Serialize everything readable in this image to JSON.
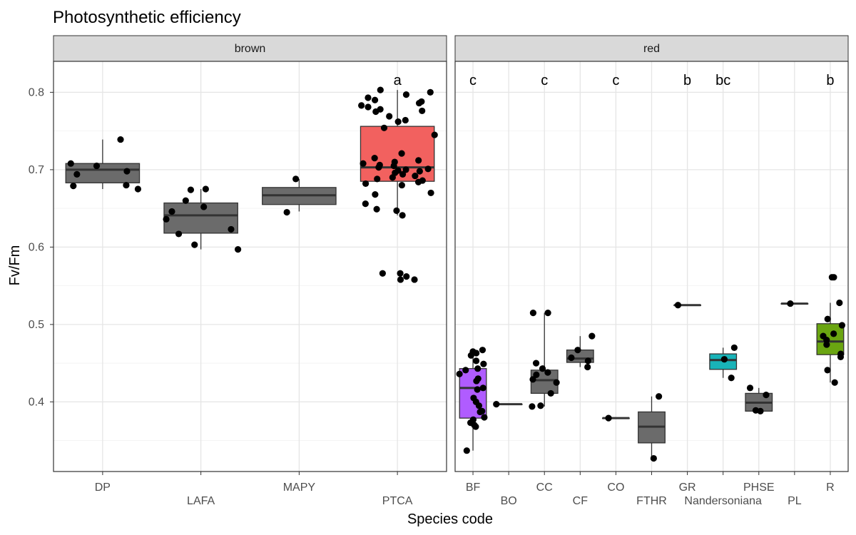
{
  "chart_data": {
    "type": "box",
    "title": "Photosynthetic efficiency",
    "xlabel": "Species code",
    "ylabel": "Fv/Fm",
    "ylim": [
      0.31,
      0.84
    ],
    "yticks": [
      0.4,
      0.5,
      0.6,
      0.7,
      0.8
    ],
    "ytick_labels": [
      "0.4",
      "0.5",
      "0.6",
      "0.7",
      "0.8"
    ],
    "grid": true,
    "colors": {
      "default": "#6b6b6b",
      "PTCA": "#f2615f",
      "BF": "#b05cff",
      "Nandersoniana": "#19b3b8",
      "R": "#6aa511"
    },
    "panels": [
      {
        "strip": "brown",
        "categories": [
          "DP",
          "LAFA",
          "MAPY",
          "PTCA"
        ],
        "groups": [
          {
            "code": "DP",
            "q1": 0.683,
            "median": 0.7,
            "q3": 0.708,
            "wlo": 0.675,
            "whi": 0.739,
            "letter": "",
            "points": [
              0.739,
              0.708,
              0.705,
              0.698,
              0.694,
              0.68,
              0.679,
              0.675
            ]
          },
          {
            "code": "LAFA",
            "q1": 0.618,
            "median": 0.641,
            "q3": 0.657,
            "wlo": 0.597,
            "whi": 0.675,
            "letter": "",
            "points": [
              0.675,
              0.674,
              0.66,
              0.652,
              0.646,
              0.636,
              0.623,
              0.617,
              0.603,
              0.597
            ]
          },
          {
            "code": "MAPY",
            "q1": 0.655,
            "median": 0.667,
            "q3": 0.677,
            "wlo": 0.646,
            "whi": 0.688,
            "letter": "",
            "points": [
              0.688,
              0.645
            ]
          },
          {
            "code": "PTCA",
            "q1": 0.685,
            "median": 0.703,
            "q3": 0.756,
            "wlo": 0.641,
            "whi": 0.803,
            "letter": "a",
            "points": [
              0.803,
              0.8,
              0.797,
              0.793,
              0.79,
              0.788,
              0.786,
              0.783,
              0.781,
              0.778,
              0.776,
              0.775,
              0.769,
              0.764,
              0.762,
              0.754,
              0.745,
              0.721,
              0.715,
              0.712,
              0.71,
              0.708,
              0.706,
              0.705,
              0.703,
              0.701,
              0.7,
              0.699,
              0.698,
              0.696,
              0.694,
              0.692,
              0.69,
              0.688,
              0.686,
              0.684,
              0.682,
              0.68,
              0.67,
              0.668,
              0.656,
              0.649,
              0.647,
              0.641,
              0.566,
              0.566,
              0.562,
              0.558,
              0.558
            ]
          }
        ]
      },
      {
        "strip": "red",
        "categories": [
          "BF",
          "BO",
          "CC",
          "CF",
          "CO",
          "FTHR",
          "GR",
          "Nandersoniana",
          "PHSE",
          "PL",
          "R"
        ],
        "groups": [
          {
            "code": "BF",
            "q1": 0.379,
            "median": 0.418,
            "q3": 0.443,
            "wlo": 0.337,
            "whi": 0.467,
            "letter": "c",
            "points": [
              0.467,
              0.465,
              0.463,
              0.46,
              0.453,
              0.449,
              0.443,
              0.441,
              0.436,
              0.43,
              0.427,
              0.418,
              0.416,
              0.405,
              0.4,
              0.395,
              0.388,
              0.387,
              0.38,
              0.377,
              0.373,
              0.37,
              0.368,
              0.337
            ]
          },
          {
            "code": "BO",
            "q1": 0.397,
            "median": 0.397,
            "q3": 0.397,
            "wlo": 0.397,
            "whi": 0.397,
            "letter": "",
            "points": [
              0.397
            ]
          },
          {
            "code": "CC",
            "q1": 0.411,
            "median": 0.428,
            "q3": 0.441,
            "wlo": 0.394,
            "whi": 0.515,
            "letter": "c",
            "points": [
              0.515,
              0.515,
              0.45,
              0.443,
              0.438,
              0.435,
              0.429,
              0.425,
              0.411,
              0.395,
              0.394
            ]
          },
          {
            "code": "CF",
            "q1": 0.451,
            "median": 0.456,
            "q3": 0.467,
            "wlo": 0.445,
            "whi": 0.485,
            "letter": "",
            "points": [
              0.485,
              0.467,
              0.457,
              0.453,
              0.445
            ]
          },
          {
            "code": "CO",
            "q1": 0.379,
            "median": 0.379,
            "q3": 0.379,
            "wlo": 0.379,
            "whi": 0.379,
            "letter": "c",
            "points": [
              0.379
            ]
          },
          {
            "code": "FTHR",
            "q1": 0.347,
            "median": 0.368,
            "q3": 0.387,
            "wlo": 0.327,
            "whi": 0.407,
            "letter": "",
            "points": [
              0.407,
              0.327
            ]
          },
          {
            "code": "GR",
            "q1": 0.525,
            "median": 0.525,
            "q3": 0.525,
            "wlo": 0.525,
            "whi": 0.525,
            "letter": "b",
            "points": [
              0.525
            ]
          },
          {
            "code": "Nandersoniana",
            "q1": 0.442,
            "median": 0.454,
            "q3": 0.462,
            "wlo": 0.431,
            "whi": 0.47,
            "letter": "bc",
            "points": [
              0.47,
              0.455,
              0.431
            ]
          },
          {
            "code": "PHSE",
            "q1": 0.388,
            "median": 0.399,
            "q3": 0.411,
            "wlo": 0.388,
            "whi": 0.418,
            "letter": "",
            "points": [
              0.418,
              0.409,
              0.389,
              0.388
            ]
          },
          {
            "code": "PL",
            "q1": 0.527,
            "median": 0.527,
            "q3": 0.527,
            "wlo": 0.527,
            "whi": 0.527,
            "letter": "",
            "points": [
              0.527
            ]
          },
          {
            "code": "R",
            "q1": 0.461,
            "median": 0.478,
            "q3": 0.501,
            "wlo": 0.425,
            "whi": 0.528,
            "letter": "b",
            "points": [
              0.561,
              0.561,
              0.528,
              0.507,
              0.499,
              0.488,
              0.485,
              0.48,
              0.474,
              0.462,
              0.458,
              0.441,
              0.425
            ]
          }
        ]
      }
    ]
  }
}
